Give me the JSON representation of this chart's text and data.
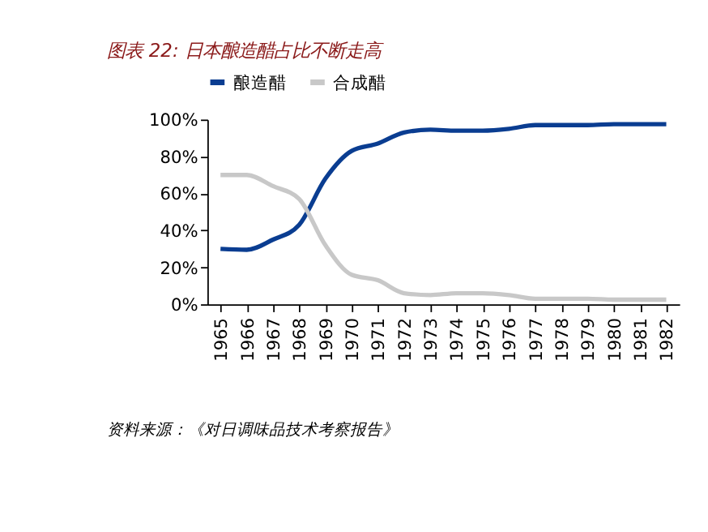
{
  "chart_data": {
    "type": "line",
    "title": "图表 22:  日本酿造醋占比不断走高",
    "categories": [
      "1965",
      "1966",
      "1967",
      "1968",
      "1969",
      "1970",
      "1971",
      "1972",
      "1973",
      "1974",
      "1975",
      "1976",
      "1977",
      "1978",
      "1979",
      "1980",
      "1981",
      "1982"
    ],
    "series": [
      {
        "name": "酿造醋",
        "color": "#0a3d91",
        "values": [
          30,
          29.5,
          35,
          43,
          68,
          83,
          87,
          93,
          94.5,
          94,
          94,
          95,
          97,
          97,
          97,
          97.5,
          97.5,
          97.5
        ]
      },
      {
        "name": "合成醋",
        "color": "#c8c8c8",
        "values": [
          70,
          70,
          64,
          57,
          32,
          16,
          13,
          6,
          5,
          6,
          6,
          5,
          3,
          3,
          3,
          2.5,
          2.5,
          2.5
        ]
      }
    ],
    "ylim": [
      0,
      100
    ],
    "yticks": [
      {
        "value": 0,
        "label": "0%"
      },
      {
        "value": 20,
        "label": "20%"
      },
      {
        "value": 40,
        "label": "40%"
      },
      {
        "value": 60,
        "label": "60%"
      },
      {
        "value": 80,
        "label": "80%"
      },
      {
        "value": 100,
        "label": "100%"
      }
    ],
    "grid": false,
    "legend": "top",
    "marker": "none",
    "line_style": "solid",
    "annotations": [
      "资料来源：《对日调味品技术考察报告》"
    ]
  }
}
